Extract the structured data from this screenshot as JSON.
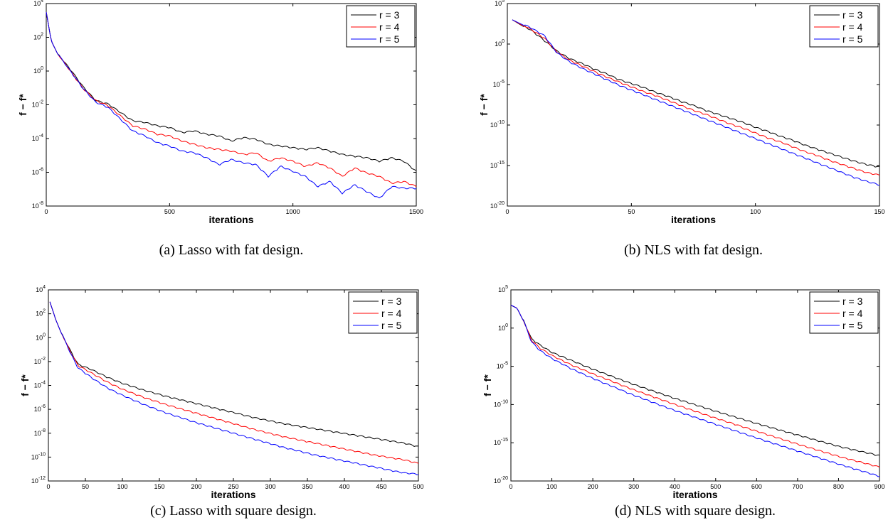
{
  "colors": {
    "r3": "#000000",
    "r4": "#ff0000",
    "r5": "#0000ff"
  },
  "chart_data": [
    {
      "type": "line",
      "caption": "(a) Lasso with fat design.",
      "xlabel": "iterations",
      "ylabel": "f − f*",
      "xlim": [
        0,
        1500
      ],
      "xticks": [
        0,
        500,
        1000,
        1500
      ],
      "yscale": "log",
      "ylim_exp": [
        -8,
        4
      ],
      "yticks_exp": [
        -8,
        -6,
        -4,
        -2,
        0,
        2,
        4
      ],
      "legend": "top-right",
      "series": [
        {
          "name": "r = 3",
          "x": [
            0,
            20,
            50,
            100,
            150,
            200,
            250,
            300,
            350,
            400,
            450,
            500,
            550,
            600,
            650,
            700,
            750,
            800,
            850,
            900,
            950,
            1000,
            1050,
            1100,
            1150,
            1200,
            1250,
            1300,
            1350,
            1400,
            1450,
            1500
          ],
          "y_exp": [
            3.5,
            1.8,
            0.9,
            0,
            -1,
            -1.8,
            -2,
            -2.5,
            -3,
            -3.1,
            -3.3,
            -3.4,
            -3.7,
            -3.6,
            -3.8,
            -3.9,
            -4.2,
            -4,
            -4.1,
            -4.4,
            -4.5,
            -4.6,
            -4.7,
            -4.6,
            -4.8,
            -5,
            -5.1,
            -5.2,
            -5.4,
            -5.2,
            -5.4,
            -6
          ]
        },
        {
          "name": "r = 4",
          "x": [
            0,
            20,
            50,
            100,
            150,
            200,
            250,
            300,
            350,
            400,
            450,
            500,
            550,
            600,
            650,
            700,
            750,
            800,
            850,
            900,
            950,
            1000,
            1050,
            1100,
            1150,
            1200,
            1250,
            1300,
            1350,
            1400,
            1450,
            1500
          ],
          "y_exp": [
            3.5,
            1.8,
            0.9,
            -0.1,
            -1.1,
            -1.8,
            -2.1,
            -2.7,
            -3.3,
            -3.5,
            -3.8,
            -3.9,
            -4.2,
            -4.4,
            -4.6,
            -4.7,
            -4.8,
            -5,
            -4.9,
            -5.4,
            -5.2,
            -5.4,
            -5.7,
            -5.5,
            -5.8,
            -6.3,
            -5.8,
            -6.1,
            -6.3,
            -6.7,
            -6.6,
            -6.9
          ]
        },
        {
          "name": "r = 5",
          "x": [
            0,
            20,
            50,
            100,
            150,
            200,
            250,
            300,
            350,
            400,
            450,
            500,
            550,
            600,
            650,
            700,
            750,
            800,
            850,
            900,
            950,
            1000,
            1050,
            1100,
            1150,
            1200,
            1250,
            1300,
            1350,
            1400,
            1450,
            1500
          ],
          "y_exp": [
            3.5,
            1.8,
            0.9,
            -0.1,
            -1.1,
            -1.9,
            -2.2,
            -2.9,
            -3.6,
            -3.9,
            -4.3,
            -4.5,
            -4.8,
            -4.9,
            -5.2,
            -5.6,
            -5.3,
            -5.5,
            -5.6,
            -6.3,
            -5.7,
            -6,
            -6.3,
            -6.9,
            -6.6,
            -7.3,
            -6.8,
            -7.2,
            -7.6,
            -6.9,
            -7,
            -7
          ]
        }
      ]
    },
    {
      "type": "line",
      "caption": "(b) NLS with fat design.",
      "xlabel": "iterations",
      "ylabel": "f − f*",
      "xlim": [
        0,
        150
      ],
      "xticks": [
        0,
        50,
        100,
        150
      ],
      "yscale": "log",
      "ylim_exp": [
        -20,
        5
      ],
      "yticks_exp": [
        -20,
        -15,
        -10,
        -5,
        0,
        5
      ],
      "legend": "top-right",
      "series": [
        {
          "name": "r = 3",
          "x": [
            2,
            10,
            15,
            20,
            25,
            30,
            35,
            40,
            45,
            50,
            55,
            60,
            65,
            70,
            75,
            80,
            85,
            90,
            95,
            100,
            105,
            110,
            115,
            120,
            125,
            130,
            135,
            140,
            145,
            150
          ],
          "y_exp": [
            3,
            1.5,
            0.3,
            -1,
            -1.9,
            -2.5,
            -3.2,
            -3.8,
            -4.5,
            -5,
            -5.5,
            -6.1,
            -6.6,
            -7.2,
            -7.7,
            -8.3,
            -8.8,
            -9.3,
            -9.8,
            -10.4,
            -10.9,
            -11.5,
            -12,
            -12.6,
            -13.1,
            -13.6,
            -14.1,
            -14.6,
            -15,
            -15.3
          ]
        },
        {
          "name": "r = 4",
          "x": [
            2,
            10,
            15,
            20,
            25,
            30,
            35,
            40,
            45,
            50,
            55,
            60,
            65,
            70,
            75,
            80,
            85,
            90,
            95,
            100,
            105,
            110,
            115,
            120,
            125,
            130,
            135,
            140,
            145,
            150
          ],
          "y_exp": [
            3,
            1.6,
            0.6,
            -1.1,
            -2.1,
            -2.8,
            -3.5,
            -4.2,
            -4.8,
            -5.4,
            -6,
            -6.5,
            -7.1,
            -7.7,
            -8.3,
            -8.8,
            -9.4,
            -10,
            -10.5,
            -11.1,
            -11.7,
            -12.2,
            -12.8,
            -13.4,
            -13.9,
            -14.5,
            -15,
            -15.5,
            -16,
            -16.3
          ]
        },
        {
          "name": "r = 5",
          "x": [
            2,
            10,
            15,
            20,
            25,
            30,
            35,
            40,
            45,
            50,
            55,
            60,
            65,
            70,
            75,
            80,
            85,
            90,
            95,
            100,
            105,
            110,
            115,
            120,
            125,
            130,
            135,
            140,
            145,
            150
          ],
          "y_exp": [
            3,
            1.8,
            0.9,
            -1.2,
            -2.3,
            -3.1,
            -3.8,
            -4.5,
            -5.2,
            -5.8,
            -6.4,
            -7,
            -7.6,
            -8.2,
            -8.8,
            -9.4,
            -10,
            -10.6,
            -11.2,
            -11.8,
            -12.4,
            -13,
            -13.6,
            -14.2,
            -14.8,
            -15.4,
            -16,
            -16.6,
            -17.1,
            -17.5
          ]
        }
      ]
    },
    {
      "type": "line",
      "caption": "(c) Lasso with square design.",
      "xlabel": "iterations",
      "ylabel": "f − f*",
      "xlim": [
        0,
        500
      ],
      "xticks": [
        0,
        50,
        100,
        150,
        200,
        250,
        300,
        350,
        400,
        450,
        500
      ],
      "yscale": "log",
      "ylim_exp": [
        -12,
        4
      ],
      "yticks_exp": [
        -12,
        -10,
        -8,
        -6,
        -4,
        -2,
        0,
        2,
        4
      ],
      "legend": "top-right",
      "series": [
        {
          "name": "r = 3",
          "x": [
            2,
            10,
            20,
            30,
            40,
            60,
            80,
            100,
            130,
            160,
            200,
            240,
            280,
            320,
            360,
            400,
            440,
            480,
            500
          ],
          "y_exp": [
            3,
            1.5,
            0,
            -1.2,
            -2.3,
            -2.8,
            -3.4,
            -3.9,
            -4.5,
            -5,
            -5.6,
            -6.2,
            -6.8,
            -7.3,
            -7.7,
            -8.1,
            -8.5,
            -8.9,
            -9.2
          ]
        },
        {
          "name": "r = 4",
          "x": [
            2,
            10,
            20,
            30,
            40,
            60,
            80,
            100,
            130,
            160,
            200,
            240,
            280,
            320,
            360,
            400,
            440,
            480,
            500
          ],
          "y_exp": [
            3,
            1.5,
            0,
            -1.3,
            -2.4,
            -3.1,
            -3.8,
            -4.4,
            -5.1,
            -5.7,
            -6.4,
            -7.1,
            -7.8,
            -8.4,
            -8.9,
            -9.4,
            -9.9,
            -10.3,
            -10.6
          ]
        },
        {
          "name": "r = 5",
          "x": [
            2,
            10,
            20,
            30,
            40,
            60,
            80,
            100,
            130,
            160,
            200,
            240,
            280,
            320,
            360,
            400,
            440,
            480,
            500
          ],
          "y_exp": [
            3,
            1.5,
            0,
            -1.4,
            -2.6,
            -3.5,
            -4.3,
            -4.9,
            -5.7,
            -6.4,
            -7.2,
            -7.9,
            -8.6,
            -9.3,
            -9.9,
            -10.4,
            -10.9,
            -11.4,
            -11.5
          ]
        }
      ]
    },
    {
      "type": "line",
      "caption": "(d) NLS with square design.",
      "xlabel": "iterations",
      "ylabel": "f − f*",
      "xlim": [
        0,
        900
      ],
      "xticks": [
        0,
        100,
        200,
        300,
        400,
        500,
        600,
        700,
        800,
        900
      ],
      "yscale": "log",
      "ylim_exp": [
        -20,
        5
      ],
      "yticks_exp": [
        -20,
        -15,
        -10,
        -5,
        0,
        5
      ],
      "legend": "top-right",
      "series": [
        {
          "name": "r = 3",
          "x": [
            0,
            15,
            30,
            50,
            70,
            100,
            150,
            200,
            300,
            400,
            500,
            600,
            700,
            800,
            900
          ],
          "y_exp": [
            3,
            2.6,
            1,
            -1.5,
            -2.3,
            -3.3,
            -4.4,
            -5.5,
            -7.5,
            -9.3,
            -11,
            -12.6,
            -14.1,
            -15.6,
            -16.8
          ]
        },
        {
          "name": "r = 4",
          "x": [
            0,
            15,
            30,
            50,
            70,
            100,
            150,
            200,
            300,
            400,
            500,
            600,
            700,
            800,
            900
          ],
          "y_exp": [
            3,
            2.6,
            1,
            -1.7,
            -2.7,
            -3.7,
            -5,
            -6.1,
            -8.2,
            -10.1,
            -11.9,
            -13.6,
            -15.3,
            -16.9,
            -18.3
          ]
        },
        {
          "name": "r = 5",
          "x": [
            0,
            15,
            30,
            50,
            70,
            100,
            150,
            200,
            300,
            400,
            500,
            600,
            700,
            800,
            900
          ],
          "y_exp": [
            3,
            2.6,
            1,
            -1.9,
            -3,
            -4.1,
            -5.5,
            -6.7,
            -8.9,
            -10.9,
            -12.7,
            -14.5,
            -16.2,
            -17.9,
            -19.5
          ]
        }
      ]
    }
  ]
}
